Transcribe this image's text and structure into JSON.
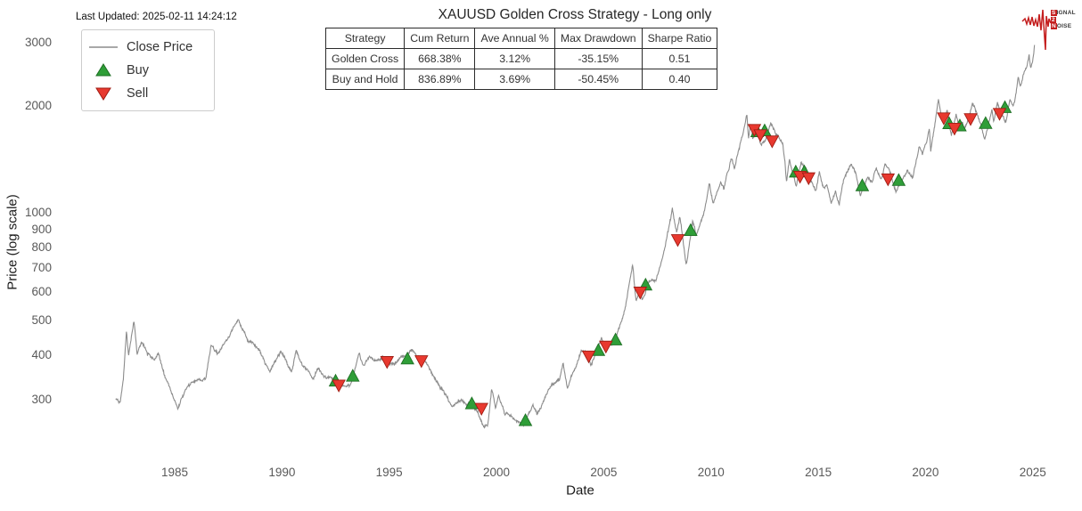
{
  "header": {
    "last_updated": "Last Updated: 2025-02-11 14:24:12"
  },
  "logo": {
    "line1_boxed": "S",
    "line1_rest": "IGNAL",
    "line2_boxed": "2",
    "line3_boxed": "N",
    "line3_rest": "OISE"
  },
  "colors": {
    "line": "#8c8c8c",
    "buy_fill": "#2f9e38",
    "buy_edge": "#1e6f24",
    "sell_fill": "#e8392f",
    "sell_edge": "#a01d14",
    "logo_red": "#c41e1e"
  },
  "stats_table": {
    "headers": [
      "Strategy",
      "Cum Return",
      "Ave Annual %",
      "Max Drawdown",
      "Sharpe Ratio"
    ],
    "rows": [
      [
        "Golden Cross",
        "668.38%",
        "3.12%",
        "-35.15%",
        "0.51"
      ],
      [
        "Buy and Hold",
        "836.89%",
        "3.69%",
        "-50.45%",
        "0.40"
      ]
    ]
  },
  "chart_data": {
    "type": "line",
    "title": "XAUUSD Golden Cross Strategy - Long only",
    "xlabel": "Date",
    "ylabel": "Price (log scale)",
    "y_scale": "log",
    "grid": false,
    "x_ticks": [
      1985,
      1990,
      1995,
      2000,
      2005,
      2010,
      2015,
      2020,
      2025
    ],
    "y_ticks": [
      300,
      400,
      500,
      600,
      700,
      800,
      900,
      1000,
      2000,
      3000
    ],
    "x_range": [
      1980.8,
      2027.1
    ],
    "y_range": [
      230,
      3150
    ],
    "legend": {
      "position": "upper left",
      "items": [
        {
          "label": "Close Price",
          "type": "line"
        },
        {
          "label": "Buy",
          "type": "buy"
        },
        {
          "label": "Sell",
          "type": "sell"
        }
      ]
    },
    "series": [
      {
        "name": "Close Price",
        "x": [
          1982.25,
          1982.45,
          1982.6,
          1982.75,
          1982.85,
          1983.1,
          1983.25,
          1983.45,
          1983.7,
          1984.05,
          1984.25,
          1984.6,
          1985.15,
          1985.6,
          1986.0,
          1986.45,
          1986.7,
          1987.0,
          1987.5,
          1987.95,
          1988.45,
          1988.95,
          1989.2,
          1989.45,
          1989.95,
          1990.15,
          1990.45,
          1990.65,
          1990.95,
          1991.45,
          1991.7,
          1992.0,
          1992.55,
          1992.95,
          1993.2,
          1993.6,
          1993.8,
          1994.05,
          1994.7,
          1995.05,
          1995.5,
          1996.1,
          1996.7,
          1997.0,
          1997.55,
          1997.95,
          1998.35,
          1998.6,
          1998.8,
          1999.0,
          1999.4,
          1999.6,
          1999.77,
          1999.95,
          2000.1,
          2000.4,
          2000.75,
          2001.1,
          2001.3,
          2001.7,
          2001.9,
          2002.45,
          2002.95,
          2003.1,
          2003.3,
          2003.7,
          2003.95,
          2004.25,
          2004.4,
          2004.9,
          2005.1,
          2005.45,
          2005.7,
          2006.0,
          2006.35,
          2006.5,
          2006.7,
          2006.8,
          2007.1,
          2007.45,
          2007.75,
          2008.2,
          2008.4,
          2008.55,
          2008.85,
          2009.15,
          2009.3,
          2009.7,
          2009.92,
          2010.1,
          2010.45,
          2010.6,
          2010.95,
          2011.1,
          2011.35,
          2011.67,
          2011.75,
          2011.85,
          2011.95,
          2012.1,
          2012.35,
          2012.55,
          2012.78,
          2013.0,
          2013.25,
          2013.35,
          2013.45,
          2013.52,
          2013.65,
          2013.8,
          2013.97,
          2014.2,
          2014.5,
          2014.6,
          2014.88,
          2015.05,
          2015.25,
          2015.4,
          2015.6,
          2015.8,
          2015.97,
          2016.2,
          2016.52,
          2016.75,
          2016.97,
          2017.3,
          2017.5,
          2017.7,
          2017.95,
          2018.1,
          2018.3,
          2018.62,
          2018.9,
          2019.15,
          2019.4,
          2019.7,
          2019.85,
          2020.05,
          2020.18,
          2020.24,
          2020.6,
          2020.75,
          2020.88,
          2021.0,
          2021.2,
          2021.42,
          2021.6,
          2021.72,
          2021.8,
          2022.0,
          2022.18,
          2022.35,
          2022.55,
          2022.75,
          2022.95,
          2023.1,
          2023.18,
          2023.35,
          2023.55,
          2023.75,
          2023.95,
          2024.08,
          2024.15,
          2024.32,
          2024.42,
          2024.6,
          2024.72,
          2024.83,
          2024.9,
          2025.0,
          2025.08
        ],
        "y": [
          302,
          297,
          340,
          468,
          398,
          508,
          408,
          432,
          410,
          385,
          398,
          340,
          286,
          326,
          338,
          345,
          424,
          400,
          452,
          496,
          438,
          412,
          382,
          362,
          412,
          392,
          355,
          408,
          378,
          348,
          368,
          352,
          338,
          332,
          327,
          404,
          368,
          388,
          388,
          374,
          388,
          414,
          382,
          352,
          318,
          283,
          302,
          289,
          296,
          285,
          254,
          258,
          323,
          285,
          312,
          276,
          268,
          262,
          256,
          288,
          274,
          322,
          348,
          380,
          324,
          370,
          414,
          400,
          376,
          454,
          422,
          432,
          468,
          540,
          722,
          572,
          622,
          575,
          650,
          655,
          745,
          1008,
          872,
          975,
          718,
          950,
          870,
          1010,
          1212,
          1062,
          1232,
          1160,
          1420,
          1318,
          1560,
          1895,
          1615,
          1795,
          1620,
          1740,
          1555,
          1600,
          1792,
          1680,
          1590,
          1550,
          1380,
          1210,
          1420,
          1310,
          1195,
          1382,
          1295,
          1240,
          1145,
          1298,
          1180,
          1225,
          1085,
          1160,
          1052,
          1250,
          1372,
          1310,
          1128,
          1265,
          1215,
          1350,
          1242,
          1360,
          1322,
          1162,
          1240,
          1326,
          1272,
          1552,
          1458,
          1580,
          1690,
          1472,
          2067,
          1862,
          1772,
          1952,
          1678,
          1908,
          1752,
          1828,
          1722,
          1848,
          2052,
          1932,
          1808,
          1618,
          1812,
          1962,
          1808,
          2048,
          1908,
          1818,
          2078,
          2018,
          2042,
          2392,
          2295,
          2480,
          2562,
          2788,
          2558,
          2648,
          2912
        ]
      }
    ],
    "buy_signals": {
      "x": [
        1992.5,
        1993.3,
        1995.85,
        1998.85,
        2001.35,
        2004.75,
        2005.55,
        2006.95,
        2009.05,
        2012.15,
        2012.5,
        2013.95,
        2014.35,
        2017.05,
        2018.75,
        2021.1,
        2021.6,
        2022.8,
        2023.7
      ],
      "y": [
        338,
        349,
        390,
        292,
        262,
        412,
        441,
        628,
        893,
        1689,
        1699,
        1302,
        1303,
        1192,
        1233,
        1779,
        1753,
        1781,
        1973
      ]
    },
    "sell_signals": {
      "x": [
        1992.65,
        1994.9,
        1996.5,
        1999.3,
        2004.3,
        2005.1,
        2006.7,
        2008.45,
        2012.02,
        2012.3,
        2012.85,
        2014.15,
        2014.55,
        2018.25,
        2020.85,
        2021.35,
        2022.1,
        2023.45
      ],
      "y": [
        330,
        384,
        386,
        284,
        398,
        424,
        601,
        843,
        1716,
        1658,
        1593,
        1268,
        1256,
        1247,
        1849,
        1729,
        1839,
        1903
      ]
    }
  }
}
